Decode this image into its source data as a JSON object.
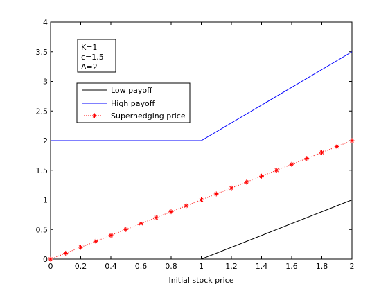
{
  "chart_data": {
    "type": "line",
    "xlabel": "Initial stock price",
    "ylabel": "",
    "title": "",
    "xlim": [
      0,
      2
    ],
    "ylim": [
      0,
      4
    ],
    "xticks": [
      0,
      0.2,
      0.4,
      0.6,
      0.8,
      1,
      1.2,
      1.4,
      1.6,
      1.8,
      2
    ],
    "xtick_labels": [
      "0",
      "0.2",
      "0.4",
      "0.6",
      "0.8",
      "1",
      "1.2",
      "1.4",
      "1.6",
      "1.8",
      "2"
    ],
    "yticks": [
      0,
      0.5,
      1,
      1.5,
      2,
      2.5,
      3,
      3.5,
      4
    ],
    "ytick_labels": [
      "0",
      "0.5",
      "1",
      "1.5",
      "2",
      "2.5",
      "3",
      "3.5",
      "4"
    ],
    "grid": false,
    "legend_placement": "upper-left",
    "annotation_lines": [
      "K=1",
      "c=1.5",
      "Δ=2"
    ],
    "series": [
      {
        "name": "Low payoff",
        "color": "#000000",
        "style": "solid",
        "x": [
          0,
          1,
          2
        ],
        "y": [
          0,
          0,
          1
        ]
      },
      {
        "name": "High payoff",
        "color": "#0000ff",
        "style": "solid",
        "x": [
          0,
          1,
          2
        ],
        "y": [
          2,
          2,
          3.5
        ]
      },
      {
        "name": "Superhedging price",
        "color": "#ff0000",
        "style": "dotted",
        "marker": "asterisk",
        "x": [
          0,
          0.1,
          0.2,
          0.3,
          0.4,
          0.5,
          0.6,
          0.7,
          0.8,
          0.9,
          1,
          1.1,
          1.2,
          1.3,
          1.4,
          1.5,
          1.6,
          1.7,
          1.8,
          1.9,
          2
        ],
        "y": [
          0,
          0.1,
          0.2,
          0.3,
          0.4,
          0.5,
          0.6,
          0.7,
          0.8,
          0.9,
          1,
          1.1,
          1.2,
          1.3,
          1.4,
          1.5,
          1.6,
          1.7,
          1.8,
          1.9,
          2
        ]
      }
    ]
  }
}
